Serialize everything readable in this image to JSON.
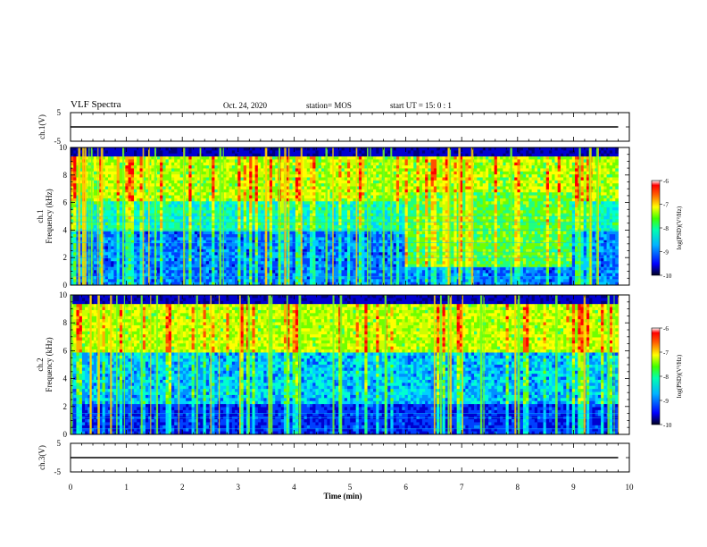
{
  "header": {
    "title": "VLF Spectra",
    "date": "Oct. 24, 2020",
    "station": "station= MOS",
    "start": "start  UT =   15: 0  : 1"
  },
  "chart_data": [
    {
      "type": "line",
      "panel": "ch1-voltage",
      "ylabel": "ch.1(V)",
      "ylim": [
        -5,
        5
      ],
      "yticks": [
        "5",
        "-5"
      ],
      "series": [
        {
          "x": [
            0,
            9.8
          ],
          "y": [
            0,
            0
          ]
        }
      ]
    },
    {
      "type": "heatmap",
      "panel": "ch1-spectrogram",
      "ylabel": "ch.1\nFrequency (kHz)",
      "xlim": [
        0,
        10
      ],
      "ylim": [
        0,
        10
      ],
      "yticks": [
        "0",
        "2",
        "4",
        "6",
        "8",
        "10"
      ],
      "data_xmax": 9.8,
      "colorbar": {
        "label": "log(PSD)(V²/Hz)",
        "range": [
          -10,
          -6
        ],
        "ticks": [
          "-6",
          "-7",
          "-8",
          "-9",
          "-10"
        ]
      }
    },
    {
      "type": "heatmap",
      "panel": "ch2-spectrogram",
      "ylabel": "ch.2\nFrequency (kHz)",
      "xlim": [
        0,
        10
      ],
      "ylim": [
        0,
        10
      ],
      "yticks": [
        "0",
        "2",
        "4",
        "6",
        "8",
        "10"
      ],
      "data_xmax": 9.8,
      "colorbar": {
        "label": "log(PSD)(V²/Hz)",
        "range": [
          -10,
          -6
        ],
        "ticks": [
          "-6",
          "-7",
          "-8",
          "-9",
          "-10"
        ]
      }
    },
    {
      "type": "line",
      "panel": "ch3-voltage",
      "ylabel": "ch.3(V)",
      "ylim": [
        -5,
        5
      ],
      "yticks": [
        "5",
        "-5"
      ],
      "xlabel": "Time (min)",
      "xticks": [
        "0",
        "1",
        "2",
        "3",
        "4",
        "5",
        "6",
        "7",
        "8",
        "9",
        "10"
      ],
      "series": [
        {
          "x": [
            0,
            9.8
          ],
          "y": [
            0,
            0
          ]
        }
      ]
    }
  ]
}
